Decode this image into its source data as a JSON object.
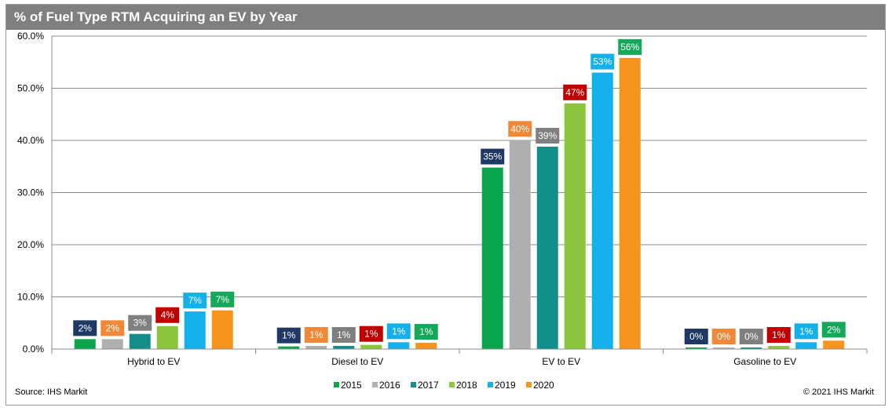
{
  "title": "% of Fuel Type RTM Acquiring an EV by Year",
  "source": "Source: IHS Markit",
  "copyright": "© 2021 IHS Markit",
  "chart_data": {
    "type": "bar",
    "categories": [
      "Hybrid to EV",
      "Diesel to EV",
      "EV to EV",
      "Gasoline to EV"
    ],
    "ylim": [
      0,
      60
    ],
    "yticks": [
      "0.0%",
      "10.0%",
      "20.0%",
      "30.0%",
      "40.0%",
      "50.0%",
      "60.0%"
    ],
    "grid": true,
    "legend_position": "bottom",
    "series": [
      {
        "name": "2015",
        "color": "#0aa64b",
        "label_color": "#1f3864",
        "values": [
          1.9,
          0.5,
          34.8,
          0.3
        ],
        "labels": [
          "2%",
          "1%",
          "35%",
          "0%"
        ]
      },
      {
        "name": "2016",
        "color": "#afafaf",
        "label_color": "#f0883a",
        "values": [
          1.9,
          0.6,
          40.1,
          0.3
        ],
        "labels": [
          "2%",
          "1%",
          "40%",
          "0%"
        ]
      },
      {
        "name": "2017",
        "color": "#138f8b",
        "label_color": "#7f7f7f",
        "values": [
          2.9,
          0.6,
          38.8,
          0.3
        ],
        "labels": [
          "3%",
          "1%",
          "39%",
          "0%"
        ]
      },
      {
        "name": "2018",
        "color": "#8cc63f",
        "label_color": "#c00000",
        "values": [
          4.4,
          0.8,
          47.1,
          0.6
        ],
        "labels": [
          "4%",
          "1%",
          "47%",
          "1%"
        ]
      },
      {
        "name": "2019",
        "color": "#14b0ec",
        "label_color": "#14b0ec",
        "values": [
          7.2,
          1.3,
          53.0,
          1.3
        ],
        "labels": [
          "7%",
          "1%",
          "53%",
          "1%"
        ]
      },
      {
        "name": "2020",
        "color": "#f7941e",
        "label_color": "#14a85a",
        "values": [
          7.4,
          1.2,
          55.8,
          1.6
        ],
        "labels": [
          "7%",
          "1%",
          "56%",
          "2%"
        ]
      }
    ]
  }
}
